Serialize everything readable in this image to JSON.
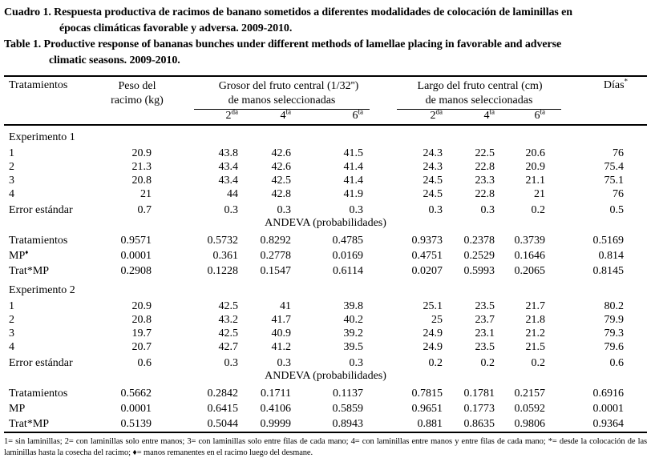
{
  "titles": {
    "es_line1": "Cuadro 1. Respuesta productiva de racimos de banano sometidos a diferentes modalidades de colocación de laminillas en",
    "es_line2": "épocas climáticas favorable y adversa. 2009-2010.",
    "en_line1": "Table 1. Productive response of bananas bunches under different methods of lamellae placing in favorable and adverse",
    "en_line2": "climatic seasons. 2009-2010."
  },
  "table": {
    "header": {
      "treatments": "Tratamientos",
      "weight_line1": "Peso del",
      "weight_line2": "racimo (kg)",
      "thickness_line1": "Grosor del fruto central (1/32'')",
      "thickness_line2": "de manos seleccionadas",
      "length_line1": "Largo del fruto central (cm)",
      "length_line2": "de manos seleccionadas",
      "days": "Días",
      "days_sup": "*",
      "subcols": [
        {
          "b": "2",
          "s": "da"
        },
        {
          "b": "4",
          "s": "ta"
        },
        {
          "b": "6",
          "s": "ta"
        }
      ]
    },
    "sections": [
      {
        "name": "Experimento 1",
        "rows": [
          {
            "label": "1",
            "cells": [
              "20.9",
              "43.8",
              "42.6",
              "41.5",
              "24.3",
              "22.5",
              "20.6",
              "76"
            ]
          },
          {
            "label": "2",
            "cells": [
              "21.3",
              "43.4",
              "42.6",
              "41.4",
              "24.3",
              "22.8",
              "20.9",
              "75.4"
            ]
          },
          {
            "label": "3",
            "cells": [
              "20.8",
              "43.4",
              "42.5",
              "41.4",
              "24.5",
              "23.3",
              "21.1",
              "75.1"
            ]
          },
          {
            "label": "4",
            "cells": [
              "21",
              "44",
              "42.8",
              "41.9",
              "24.5",
              "22.8",
              "21",
              "76"
            ]
          }
        ],
        "error_row": {
          "label": "Error estándar",
          "cells": [
            "0.7",
            "0.3",
            "0.3",
            "0.3",
            "0.3",
            "0.3",
            "0.2",
            "0.5"
          ]
        },
        "andeva_label": "ANDEVA (probabilidades)",
        "andeva_rows": [
          {
            "label": "Tratamientos",
            "cells": [
              "0.9571",
              "0.5732",
              "0.8292",
              "0.4785",
              "0.9373",
              "0.2378",
              "0.3739",
              "0.5169"
            ]
          },
          {
            "label": "MP",
            "label_sup": "♦",
            "cells": [
              "0.0001",
              "0.361",
              "0.2778",
              "0.0169",
              "0.4751",
              "0.2529",
              "0.1646",
              "0.814"
            ]
          },
          {
            "label": "Trat*MP",
            "cells": [
              "0.2908",
              "0.1228",
              "0.1547",
              "0.6114",
              "0.0207",
              "0.5993",
              "0.2065",
              "0.8145"
            ]
          }
        ]
      },
      {
        "name": "Experimento 2",
        "rows": [
          {
            "label": "1",
            "cells": [
              "20.9",
              "42.5",
              "41",
              "39.8",
              "25.1",
              "23.5",
              "21.7",
              "80.2"
            ]
          },
          {
            "label": "2",
            "cells": [
              "20.8",
              "43.2",
              "41.7",
              "40.2",
              "25",
              "23.7",
              "21.8",
              "79.9"
            ]
          },
          {
            "label": "3",
            "cells": [
              "19.7",
              "42.5",
              "40.9",
              "39.2",
              "24.9",
              "23.1",
              "21.2",
              "79.3"
            ]
          },
          {
            "label": "4",
            "cells": [
              "20.7",
              "42.7",
              "41.2",
              "39.5",
              "24.9",
              "23.5",
              "21.5",
              "79.6"
            ]
          }
        ],
        "error_row": {
          "label": "Error estándar",
          "cells": [
            "0.6",
            "0.3",
            "0.3",
            "0.3",
            "0.2",
            "0.2",
            "0.2",
            "0.6"
          ]
        },
        "andeva_label": "ANDEVA (probabilidades)",
        "andeva_rows": [
          {
            "label": "Tratamientos",
            "cells": [
              "0.5662",
              "0.2842",
              "0.1711",
              "0.1137",
              "0.7815",
              "0.1781",
              "0.2157",
              "0.6916"
            ]
          },
          {
            "label": "MP",
            "cells": [
              "0.0001",
              "0.6415",
              "0.4106",
              "0.5859",
              "0.9651",
              "0.1773",
              "0.0592",
              "0.0001"
            ]
          },
          {
            "label": "Trat*MP",
            "cells": [
              "0.5139",
              "0.5044",
              "0.9999",
              "0.8943",
              "0.881",
              "0.8635",
              "0.9806",
              "0.9364"
            ]
          }
        ]
      }
    ]
  },
  "footnote": "1= sin laminillas; 2= con laminillas solo entre manos; 3= con laminillas solo entre filas de cada mano; 4= con laminillas entre manos y entre filas de cada mano; *= desde la colocación de las laminillas hasta la cosecha del racimo; ♦= manos remanentes en el racimo luego del desmane."
}
